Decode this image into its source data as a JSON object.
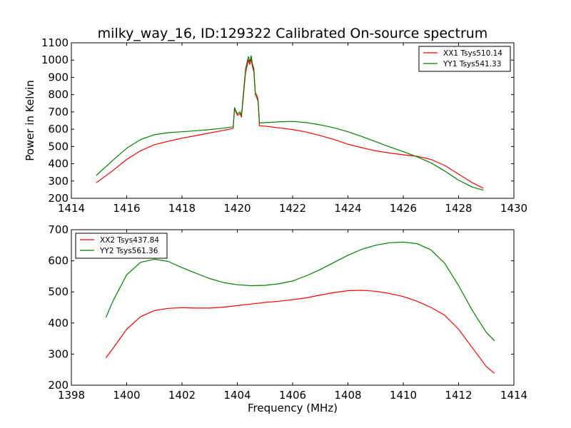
{
  "chart_data": [
    {
      "type": "line",
      "title": "milky_way_16, ID:129322 Calibrated On-source spectrum",
      "xlabel": "",
      "ylabel": "Power in Kelvin",
      "xlim": [
        1414,
        1430
      ],
      "ylim": [
        200,
        1100
      ],
      "xticks": [
        1414,
        1416,
        1418,
        1420,
        1422,
        1424,
        1426,
        1428,
        1430
      ],
      "yticks": [
        200,
        300,
        400,
        500,
        600,
        700,
        800,
        900,
        1000,
        1100
      ],
      "grid": false,
      "legend_position": "top-right",
      "series": [
        {
          "name": "XX1 Tsys510.14",
          "color": "#ff0000",
          "x": [
            1414.9,
            1415.5,
            1416.0,
            1416.5,
            1417.0,
            1417.5,
            1418.0,
            1418.5,
            1419.0,
            1419.5,
            1419.85,
            1419.9,
            1420.0,
            1420.1,
            1420.15,
            1420.2,
            1420.3,
            1420.4,
            1420.45,
            1420.5,
            1420.55,
            1420.6,
            1420.65,
            1420.7,
            1420.75,
            1420.8,
            1421.0,
            1421.5,
            1422.0,
            1422.5,
            1423.0,
            1423.5,
            1424.0,
            1424.5,
            1425.0,
            1425.5,
            1426.0,
            1426.5,
            1427.0,
            1427.5,
            1428.0,
            1428.5,
            1428.9
          ],
          "y": [
            290,
            360,
            425,
            475,
            510,
            530,
            548,
            563,
            578,
            593,
            605,
            718,
            680,
            690,
            670,
            760,
            930,
            1000,
            975,
            1005,
            960,
            930,
            800,
            785,
            760,
            620,
            618,
            608,
            598,
            583,
            563,
            540,
            513,
            493,
            475,
            462,
            452,
            443,
            425,
            390,
            340,
            290,
            258
          ]
        },
        {
          "name": "YY1 Tsys541.33",
          "color": "#008000",
          "x": [
            1414.9,
            1415.5,
            1416.0,
            1416.5,
            1417.0,
            1417.5,
            1418.0,
            1418.5,
            1419.0,
            1419.5,
            1419.85,
            1419.9,
            1420.0,
            1420.1,
            1420.15,
            1420.2,
            1420.3,
            1420.4,
            1420.45,
            1420.5,
            1420.55,
            1420.6,
            1420.65,
            1420.7,
            1420.75,
            1420.8,
            1421.0,
            1421.5,
            1422.0,
            1422.5,
            1423.0,
            1423.5,
            1424.0,
            1424.5,
            1425.0,
            1425.5,
            1426.0,
            1426.5,
            1427.0,
            1427.5,
            1428.0,
            1428.5,
            1428.9
          ],
          "y": [
            332,
            420,
            490,
            540,
            568,
            580,
            585,
            591,
            598,
            606,
            614,
            725,
            688,
            700,
            678,
            775,
            950,
            1020,
            990,
            1025,
            975,
            950,
            810,
            800,
            770,
            636,
            638,
            642,
            645,
            638,
            625,
            608,
            585,
            558,
            528,
            498,
            470,
            440,
            405,
            358,
            305,
            265,
            247
          ]
        }
      ]
    },
    {
      "type": "line",
      "title": "",
      "xlabel": "Frequency (MHz)",
      "ylabel": "",
      "xlim": [
        1398,
        1414
      ],
      "ylim": [
        200,
        700
      ],
      "xticks": [
        1398,
        1400,
        1402,
        1404,
        1406,
        1408,
        1410,
        1412,
        1414
      ],
      "yticks": [
        200,
        300,
        400,
        500,
        600,
        700
      ],
      "grid": false,
      "legend_position": "top-left",
      "series": [
        {
          "name": "XX2 Tsys437.84",
          "color": "#ff0000",
          "x": [
            1399.25,
            1399.5,
            1400.0,
            1400.5,
            1401.0,
            1401.5,
            1402.0,
            1402.5,
            1403.0,
            1403.5,
            1404.0,
            1404.5,
            1405.0,
            1405.5,
            1406.0,
            1406.5,
            1407.0,
            1407.5,
            1408.0,
            1408.5,
            1409.0,
            1409.5,
            1410.0,
            1410.5,
            1411.0,
            1411.5,
            1412.0,
            1412.5,
            1413.0,
            1413.3
          ],
          "y": [
            288,
            318,
            380,
            420,
            440,
            447,
            449,
            448,
            448,
            451,
            456,
            461,
            466,
            470,
            475,
            481,
            490,
            498,
            504,
            505,
            502,
            495,
            485,
            470,
            450,
            425,
            380,
            320,
            260,
            238
          ]
        },
        {
          "name": "YY2 Tsys561.36",
          "color": "#008000",
          "x": [
            1399.25,
            1399.5,
            1400.0,
            1400.5,
            1401.0,
            1401.5,
            1402.0,
            1402.5,
            1403.0,
            1403.5,
            1404.0,
            1404.5,
            1405.0,
            1405.5,
            1406.0,
            1406.5,
            1407.0,
            1407.5,
            1408.0,
            1408.5,
            1409.0,
            1409.5,
            1410.0,
            1410.5,
            1411.0,
            1411.5,
            1412.0,
            1412.5,
            1413.0,
            1413.3
          ],
          "y": [
            418,
            470,
            555,
            595,
            605,
            598,
            578,
            560,
            543,
            530,
            523,
            520,
            521,
            526,
            535,
            552,
            572,
            595,
            618,
            637,
            650,
            658,
            660,
            655,
            635,
            592,
            520,
            440,
            370,
            343
          ]
        }
      ]
    }
  ]
}
